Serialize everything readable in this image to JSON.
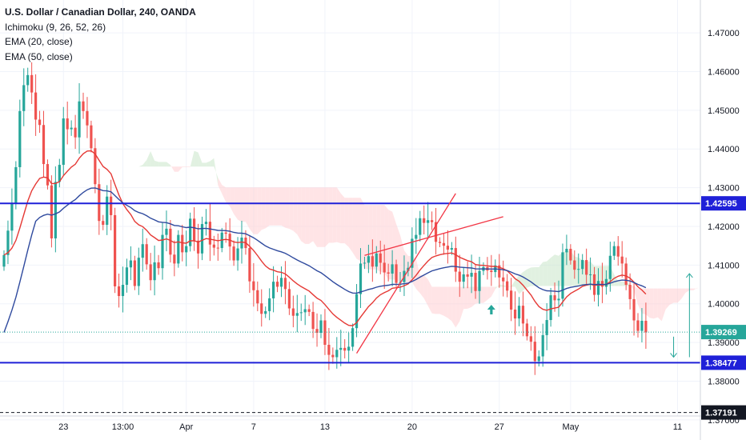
{
  "legend": {
    "title": "U.S. Dollar / Canadian Dollar, 240, OANDA",
    "indicators": [
      "Ichimoku (9, 26, 52, 26)",
      "EMA (20, close)",
      "EMA (50, close)"
    ]
  },
  "colors": {
    "up": "#26a69a",
    "down": "#ef5350",
    "ema20": "#e53935",
    "ema50": "#2f4a9e",
    "level_line": "#1f20d8",
    "cloud_green": "#c8e6c9",
    "cloud_red": "#ffcdd2",
    "current_price_line": "#26a69a",
    "trendline": "#f23645"
  },
  "chart_data": {
    "type": "candlestick",
    "symbol": "U.S. Dollar / Canadian Dollar",
    "interval": "240",
    "source": "OANDA",
    "ylim": [
      1.371,
      1.4785
    ],
    "y_ticks": [
      "1.47000",
      "1.46000",
      "1.45000",
      "1.44000",
      "1.43000",
      "1.42000",
      "1.41000",
      "1.40000",
      "1.39000",
      "1.38000",
      "1.37000"
    ],
    "x_ticks": [
      {
        "label": "23",
        "bar": 15
      },
      {
        "label": "13:00",
        "bar": 30
      },
      {
        "label": "Apr",
        "bar": 46
      },
      {
        "label": "7",
        "bar": 63
      },
      {
        "label": "13",
        "bar": 81
      },
      {
        "label": "20",
        "bar": 103
      },
      {
        "label": "27",
        "bar": 125
      },
      {
        "label": "May",
        "bar": 143
      },
      {
        "label": "11",
        "bar": 170
      }
    ],
    "horizontal_levels": [
      {
        "label": "1.42595",
        "value": 1.42595,
        "style": "solid"
      },
      {
        "label": "1.38477",
        "value": 1.38477,
        "style": "solid"
      },
      {
        "label": "1.37191",
        "value": 1.37191,
        "style": "dashed"
      }
    ],
    "current_price": {
      "label": "1.39269",
      "value": 1.39269
    },
    "trendlines": [
      {
        "from": [
          89,
          1.3872
        ],
        "to": [
          114,
          1.4285
        ]
      },
      {
        "from": [
          91,
          1.4125
        ],
        "to": [
          126,
          1.4225
        ]
      }
    ],
    "arrows": [
      {
        "type": "up",
        "at": [
          123,
          1.3985
        ]
      },
      {
        "type": "range",
        "at": [
          173,
          1.3862
        ],
        "to": [
          173,
          1.4078
        ]
      },
      {
        "type": "down",
        "at": [
          169,
          1.3915
        ],
        "to": [
          169,
          1.3862
        ]
      }
    ],
    "close": [
      1.4126,
      1.4189,
      1.4258,
      1.4353,
      1.4498,
      1.4565,
      1.4591,
      1.4546,
      1.4476,
      1.4462,
      1.4361,
      1.4306,
      1.4169,
      1.4315,
      1.4359,
      1.4479,
      1.4451,
      1.4455,
      1.443,
      1.4523,
      1.4498,
      1.4461,
      1.4402,
      1.4309,
      1.4214,
      1.4204,
      1.4277,
      1.4229,
      1.4045,
      1.402,
      1.4049,
      1.4094,
      1.4112,
      1.4046,
      1.4119,
      1.4154,
      1.4102,
      1.4061,
      1.4107,
      1.4092,
      1.4178,
      1.4194,
      1.4127,
      1.4104,
      1.4178,
      1.4133,
      1.4149,
      1.422,
      1.4163,
      1.413,
      1.4206,
      1.4212,
      1.4153,
      1.4145,
      1.4144,
      1.4184,
      1.4181,
      1.4148,
      1.4112,
      1.4143,
      1.4171,
      1.4144,
      1.4058,
      1.4035,
      1.4001,
      1.3974,
      1.3981,
      1.4014,
      1.4057,
      1.4044,
      1.4067,
      1.4038,
      1.3988,
      1.3969,
      1.3976,
      1.3978,
      1.3986,
      1.3979,
      1.3935,
      1.3925,
      1.3957,
      1.3894,
      1.3868,
      1.3862,
      1.3881,
      1.3886,
      1.3879,
      1.3889,
      1.3937,
      1.4025,
      1.4104,
      1.4106,
      1.4123,
      1.4096,
      1.413,
      1.4106,
      1.4081,
      1.4078,
      1.4102,
      1.4054,
      1.4056,
      1.4085,
      1.4093,
      1.4168,
      1.4178,
      1.4221,
      1.4209,
      1.4216,
      1.4211,
      1.416,
      1.4157,
      1.415,
      1.414,
      1.4144,
      1.4083,
      1.4057,
      1.4076,
      1.407,
      1.408,
      1.4033,
      1.4085,
      1.4095,
      1.4086,
      1.4082,
      1.4099,
      1.4068,
      1.4058,
      1.4034,
      1.3985,
      1.3962,
      1.3995,
      1.3949,
      1.3916,
      1.3902,
      1.3852,
      1.3864,
      1.3919,
      1.3958,
      1.4022,
      1.4009,
      1.4013,
      1.4133,
      1.4142,
      1.4112,
      1.4088,
      1.409,
      1.4113,
      1.4075,
      1.4076,
      1.4023,
      1.4059,
      1.4044,
      1.4064,
      1.4124,
      1.4149,
      1.4122,
      1.4104,
      1.4049,
      1.4012,
      1.3957,
      1.393,
      1.3956,
      1.3926
    ]
  },
  "price_axis": {
    "current_price_label": "1.39269",
    "level_labels": [
      "1.42595",
      "1.38477",
      "1.37191"
    ]
  }
}
